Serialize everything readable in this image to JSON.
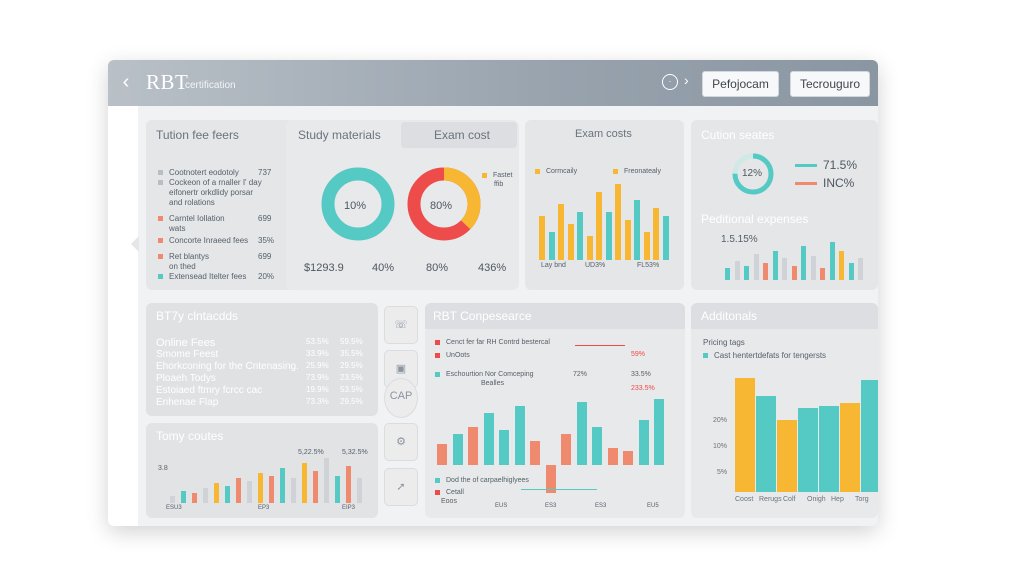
{
  "header": {
    "title": "RBT",
    "subtitle": "certification",
    "button_1": "Pefojocam",
    "button_2": "Tecrouguro",
    "back_icon": "back-arrow-icon",
    "info_icon": "info-circle-icon"
  },
  "colors": {
    "teal": "#55c9c3",
    "yellow": "#f7b733",
    "coral": "#f08a6e",
    "red": "#ee4b4b",
    "grey": "#cfd3d7"
  },
  "tuition": {
    "title": "Tution fee feers",
    "items": [
      {
        "label": "Cootnotert eodotoly",
        "value": "737",
        "color": "#b8bec4"
      },
      {
        "label": "Cockeon of a rnaller I' day",
        "value": "",
        "color": "#b8bec4"
      },
      {
        "label": "eifonertr orkdlidy porsar",
        "value": "",
        "color": "#b8bec4"
      },
      {
        "label": "and rolations",
        "value": "",
        "color": "#b8bec4"
      },
      {
        "label": "Carntel Iollation",
        "value": "699",
        "color": "#f08a6e"
      },
      {
        "label": "wats",
        "value": "",
        "color": "#f08a6e"
      },
      {
        "label": "Concorte Inraeed fees",
        "value": "35%",
        "color": "#f08a6e"
      },
      {
        "label": "Ret blantys",
        "value": "699",
        "color": "#f08a6e"
      },
      {
        "label": "on thed",
        "value": "",
        "color": "#f08a6e"
      },
      {
        "label": "Extensead Itelter fees",
        "value": "20%",
        "color": "#55c9c3"
      }
    ]
  },
  "study": {
    "title": "Study materials",
    "exam_tab": "Exam cost",
    "ring1_label": "10%",
    "ring2_label": "80%",
    "legend": [
      "Fastet",
      "ffib"
    ],
    "footer": [
      "$1293.9",
      "40%",
      "80%",
      "436%"
    ]
  },
  "exam_costs": {
    "title": "Exam costs",
    "legend": [
      "Cormcaily",
      "Freonatealy"
    ],
    "footer": [
      "Lay bnd",
      "UD3%",
      "FL53%"
    ],
    "bars": [
      {
        "v": 0.55,
        "c": "yellow"
      },
      {
        "v": 0.35,
        "c": "teal"
      },
      {
        "v": 0.7,
        "c": "yellow"
      },
      {
        "v": 0.45,
        "c": "yellow"
      },
      {
        "v": 0.6,
        "c": "teal"
      },
      {
        "v": 0.3,
        "c": "yellow"
      },
      {
        "v": 0.85,
        "c": "yellow"
      },
      {
        "v": 0.6,
        "c": "teal"
      },
      {
        "v": 0.95,
        "c": "yellow"
      },
      {
        "v": 0.5,
        "c": "yellow"
      },
      {
        "v": 0.75,
        "c": "teal"
      },
      {
        "v": 0.35,
        "c": "yellow"
      },
      {
        "v": 0.65,
        "c": "yellow"
      },
      {
        "v": 0.55,
        "c": "teal"
      }
    ]
  },
  "cution": {
    "title": "Cution seates",
    "ring_label": "12%",
    "legend": [
      {
        "label": "71.5%",
        "color": "#55c9c3"
      },
      {
        "label": "INC%",
        "color": "#f08a6e"
      }
    ],
    "sub_title": "Peditional expenses",
    "value": "1.5.15%",
    "bars": [
      {
        "v": 0.25,
        "c": "teal"
      },
      {
        "v": 0.4,
        "c": "grey"
      },
      {
        "v": 0.3,
        "c": "teal"
      },
      {
        "v": 0.55,
        "c": "grey"
      },
      {
        "v": 0.35,
        "c": "coral"
      },
      {
        "v": 0.6,
        "c": "teal"
      },
      {
        "v": 0.45,
        "c": "grey"
      },
      {
        "v": 0.3,
        "c": "coral"
      },
      {
        "v": 0.7,
        "c": "teal"
      },
      {
        "v": 0.5,
        "c": "grey"
      },
      {
        "v": 0.25,
        "c": "coral"
      },
      {
        "v": 0.8,
        "c": "teal"
      },
      {
        "v": 0.6,
        "c": "yellow"
      },
      {
        "v": 0.35,
        "c": "teal"
      },
      {
        "v": 0.45,
        "c": "grey"
      }
    ]
  },
  "contacts": {
    "title": "BT7y clntacdds",
    "rows": [
      {
        "label": "Online Fees",
        "v1": "53.5%",
        "v2": "59.5%"
      },
      {
        "label": "Smome Feest",
        "v1": "33.9%",
        "v2": "35.5%"
      },
      {
        "label": "Ehorkconing for the Cntenasing.",
        "v1": "25.9%",
        "v2": "29.5%"
      },
      {
        "label": "Ploaeh Todys",
        "v1": "73.9%",
        "v2": "23.5%"
      },
      {
        "label": "Estoiaed ftmry fcrcc cac",
        "v1": "19.9%",
        "v2": "53.5%"
      },
      {
        "label": "Enhenae Flap",
        "v1": "73.3%",
        "v2": "29.5%"
      }
    ]
  },
  "totaly": {
    "title": "Tomy coutes",
    "top_labels": [
      "5,22.5%",
      "5,32.5%"
    ],
    "side_label": "3.8",
    "x_labels": [
      "ESU3",
      "EP3",
      "EIP3"
    ],
    "bars": [
      {
        "v": 0.15,
        "c": "grey"
      },
      {
        "v": 0.25,
        "c": "teal"
      },
      {
        "v": 0.2,
        "c": "coral"
      },
      {
        "v": 0.3,
        "c": "grey"
      },
      {
        "v": 0.4,
        "c": "yellow"
      },
      {
        "v": 0.35,
        "c": "teal"
      },
      {
        "v": 0.5,
        "c": "coral"
      },
      {
        "v": 0.45,
        "c": "grey"
      },
      {
        "v": 0.6,
        "c": "yellow"
      },
      {
        "v": 0.55,
        "c": "coral"
      },
      {
        "v": 0.7,
        "c": "teal"
      },
      {
        "v": 0.5,
        "c": "grey"
      },
      {
        "v": 0.8,
        "c": "yellow"
      },
      {
        "v": 0.65,
        "c": "coral"
      },
      {
        "v": 0.9,
        "c": "grey"
      },
      {
        "v": 0.55,
        "c": "teal"
      },
      {
        "v": 0.75,
        "c": "coral"
      },
      {
        "v": 0.5,
        "c": "grey"
      }
    ]
  },
  "toolbar": {
    "icons": [
      "phone-icon",
      "calendar-icon",
      "car-icon",
      "tools-icon",
      "rocket-icon"
    ],
    "car_text": "CAP"
  },
  "compliance": {
    "title": "RBT Conpesearce",
    "legend": [
      {
        "label": "Cenct fer far RH Contrd bestercal",
        "value": "59%",
        "color": "#ee4b4b"
      },
      {
        "label": "UnOots",
        "value": "",
        "color": "#ee4b4b"
      },
      {
        "label": "Eschourtion Nor Comceping",
        "value": "72%",
        "color": "#55c9c3"
      },
      {
        "label": "Bealles",
        "value": "",
        "color": "#55c9c3"
      }
    ],
    "right_vals": [
      "33.5%",
      "233.5%"
    ],
    "bottom_legend": [
      {
        "label": "Dod the of carpaelhiglyees",
        "color": "#55c9c3"
      },
      {
        "label": "Cetall",
        "color": "#ee4b4b"
      },
      {
        "label": "Eoos",
        "color": "#ee4b4b"
      }
    ],
    "x_labels": [
      "EUS",
      "ES3",
      "ES3",
      "EU5"
    ],
    "bars": [
      {
        "v": 0.3,
        "c": "coral"
      },
      {
        "v": 0.45,
        "c": "teal"
      },
      {
        "v": 0.55,
        "c": "coral"
      },
      {
        "v": 0.75,
        "c": "teal"
      },
      {
        "v": 0.5,
        "c": "teal"
      },
      {
        "v": 0.85,
        "c": "teal"
      },
      {
        "v": 0.35,
        "c": "coral"
      },
      {
        "v": -0.4,
        "c": "coral"
      },
      {
        "v": 0.45,
        "c": "coral"
      },
      {
        "v": 0.9,
        "c": "teal"
      },
      {
        "v": 0.55,
        "c": "teal"
      },
      {
        "v": 0.25,
        "c": "coral"
      },
      {
        "v": 0.2,
        "c": "coral"
      },
      {
        "v": 0.65,
        "c": "teal"
      },
      {
        "v": 0.95,
        "c": "teal"
      }
    ]
  },
  "additionals": {
    "title": "Additonals",
    "pricing": "Pricing tags",
    "legend": "Cast hentertdefats for tengersts",
    "y_labels": [
      "20%",
      "10%",
      "5%"
    ],
    "x_labels": [
      "Coost",
      "Rerugs",
      "Colf",
      "Onigh",
      "Hep",
      "Torg"
    ],
    "bars": [
      {
        "v": 0.95,
        "c": "yellow"
      },
      {
        "v": 0.8,
        "c": "teal"
      },
      {
        "v": 0.6,
        "c": "yellow"
      },
      {
        "v": 0.7,
        "c": "teal"
      },
      {
        "v": 0.72,
        "c": "teal"
      },
      {
        "v": 0.74,
        "c": "yellow"
      },
      {
        "v": 0.93,
        "c": "teal"
      }
    ]
  }
}
